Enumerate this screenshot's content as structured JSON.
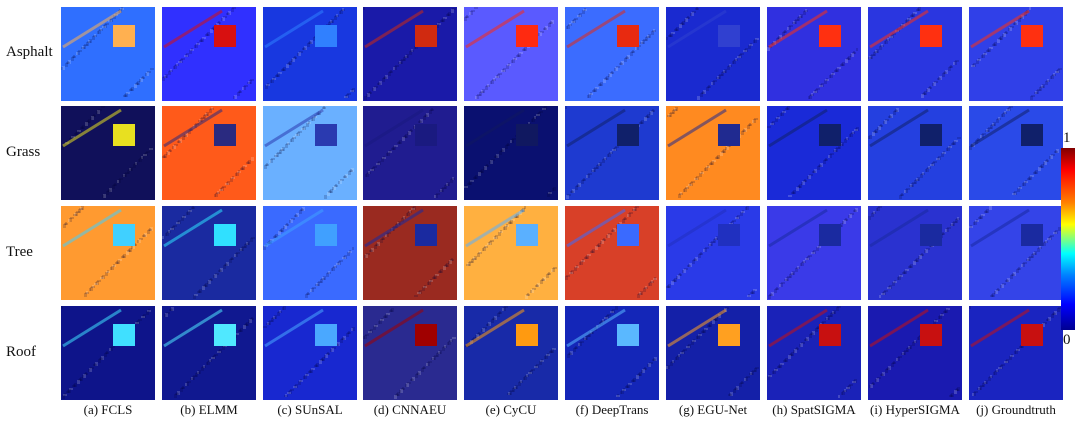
{
  "figure": {
    "rows": [
      "Asphalt",
      "Grass",
      "Tree",
      "Roof"
    ],
    "methods": [
      "(a) FCLS",
      "(b) ELMM",
      "(c) SUnSAL",
      "(d) CNNAEU",
      "(e) CyCU",
      "(f) DeepTrans",
      "(g) EGU-Net",
      "(h) SpatSIGMA",
      "(i) HyperSIGMA",
      "(j) Groundtruth"
    ],
    "colorbar": {
      "max_label": "1",
      "min_label": "0",
      "colormap": [
        "#000090",
        "#0000ff",
        "#0080ff",
        "#00ffff",
        "#80ff80",
        "#ffff00",
        "#ff8000",
        "#ff0000",
        "#800000"
      ]
    },
    "tiles": [
      [
        "#2f6fff",
        "#3030ff",
        "#1838e0",
        "#1a1aa8",
        "#5a5aff",
        "#3b6cff",
        "#1a2ad0",
        "#3030e0",
        "#2a36e0",
        "#3040e8"
      ],
      [
        "#10105a",
        "#ff5a1a",
        "#6ab0ff",
        "#201c90",
        "#0a1070",
        "#1e3ad0",
        "#ff8a20",
        "#1a2ad8",
        "#2440e0",
        "#2a4ae8"
      ],
      [
        "#ff9a30",
        "#1a2aa0",
        "#3a6aff",
        "#9a2a20",
        "#ffb040",
        "#d84028",
        "#2a3ae8",
        "#3a3ae8",
        "#2a32d0",
        "#3444e8"
      ],
      [
        "#0e148a",
        "#101890",
        "#1828d0",
        "#2a2a90",
        "#182aa8",
        "#1426b8",
        "#1420a8",
        "#1a22b8",
        "#1a1ab0",
        "#1a24c0"
      ]
    ],
    "highlights": [
      [
        "#ffb050",
        "#d81010",
        "#3080ff",
        "#d02a10",
        "#ff2a10",
        "#e82a10",
        "#3040d0",
        "#ff3010",
        "#ff3010",
        "#ff3010"
      ],
      [
        "#e8e020",
        "#2a2a80",
        "#2a3ab0",
        "#1a1a80",
        "#101860",
        "#10206a",
        "#202a90",
        "#10206a",
        "#10206a",
        "#10206a"
      ],
      [
        "#40d0ff",
        "#30e0ff",
        "#40a0ff",
        "#1a2aa0",
        "#5ab0ff",
        "#3a6aff",
        "#2030c0",
        "#1a2aa0",
        "#1a2aa0",
        "#1a2aa0"
      ],
      [
        "#40e0ff",
        "#50e8ff",
        "#4aa8ff",
        "#a00000",
        "#ff9a10",
        "#5ab8ff",
        "#ffa020",
        "#c81010",
        "#c81010",
        "#c81010"
      ]
    ]
  }
}
